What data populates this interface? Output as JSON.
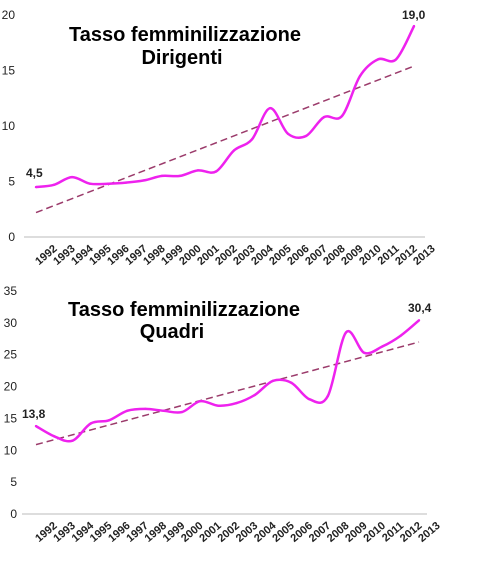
{
  "chart_data": [
    {
      "type": "line",
      "title": "Tasso femminilizzazione",
      "subtitle": "Dirigenti",
      "categories": [
        "1992",
        "1993",
        "1994",
        "1995",
        "1996",
        "1997",
        "1998",
        "1999",
        "2000",
        "2001",
        "2002",
        "2003",
        "2004",
        "2005",
        "2006",
        "2007",
        "2008",
        "2009",
        "2010",
        "2011",
        "2012",
        "2013"
      ],
      "series": [
        {
          "values": [
            4.5,
            4.7,
            5.4,
            4.8,
            4.8,
            4.9,
            5.1,
            5.5,
            5.5,
            6.0,
            5.9,
            7.8,
            8.8,
            11.6,
            9.3,
            9.1,
            10.8,
            10.9,
            14.5,
            16.0,
            16.0,
            19.0
          ]
        }
      ],
      "trendline": {
        "start": 2.2,
        "end": 15.4,
        "style": "dashed"
      },
      "data_labels": {
        "first": "4,5",
        "last": "19,0"
      },
      "yticks": [
        "0",
        "5",
        "10",
        "15",
        "20"
      ],
      "ylim": [
        0,
        20
      ],
      "grid": false,
      "line_color": "#ee22ee",
      "trend_color": "#9b3b6b"
    },
    {
      "type": "line",
      "title": "Tasso femminilizzazione",
      "subtitle": "Quadri",
      "categories": [
        "1992",
        "1993",
        "1994",
        "1995",
        "1996",
        "1997",
        "1998",
        "1999",
        "2000",
        "2001",
        "2002",
        "2003",
        "2004",
        "2005",
        "2006",
        "2007",
        "2008",
        "2009",
        "2010",
        "2011",
        "2012",
        "2013"
      ],
      "series": [
        {
          "values": [
            13.8,
            12.2,
            11.5,
            14.2,
            14.7,
            16.2,
            16.5,
            16.2,
            16.0,
            17.7,
            17.0,
            17.4,
            18.7,
            20.9,
            20.6,
            18.0,
            18.5,
            28.5,
            25.3,
            26.3,
            28.0,
            30.4
          ]
        }
      ],
      "trendline": {
        "start": 10.9,
        "end": 27.0,
        "style": "dashed"
      },
      "data_labels": {
        "first": "13,8",
        "last": "30,4"
      },
      "yticks": [
        "0",
        "5",
        "10",
        "15",
        "20",
        "25",
        "30",
        "35"
      ],
      "ylim": [
        0,
        35
      ],
      "grid": false,
      "line_color": "#ee22ee",
      "trend_color": "#9b3b6b"
    }
  ]
}
